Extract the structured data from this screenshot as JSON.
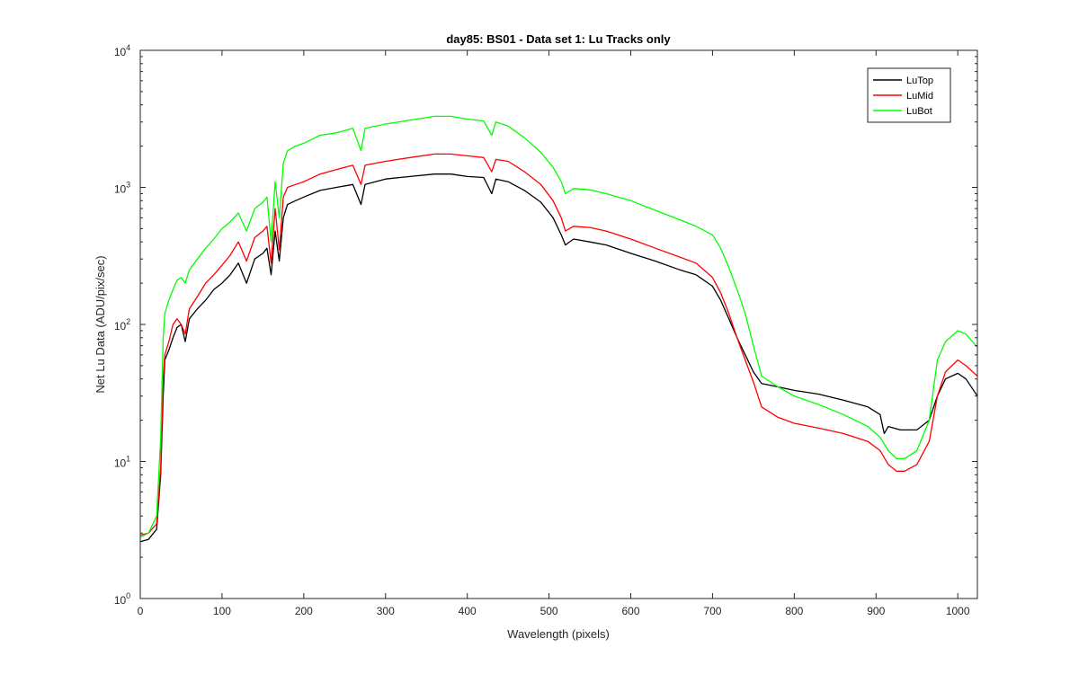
{
  "chart_data": {
    "type": "line",
    "title": "day85: BS01 - Data set 1: Lu Tracks only",
    "xlabel": "Wavelength (pixels)",
    "ylabel": "Net Lu Data (ADU/pix/sec)",
    "xlim": [
      0,
      1024
    ],
    "ylim": [
      1,
      10000
    ],
    "yscale": "log",
    "grid": false,
    "legend_position": "top-right",
    "x_ticks": [
      0,
      100,
      200,
      300,
      400,
      500,
      600,
      700,
      800,
      900,
      1000
    ],
    "y_ticks": [
      {
        "value": 1,
        "base": "10",
        "exp": "0"
      },
      {
        "value": 10,
        "base": "10",
        "exp": "1"
      },
      {
        "value": 100,
        "base": "10",
        "exp": "2"
      },
      {
        "value": 1000,
        "base": "10",
        "exp": "3"
      },
      {
        "value": 10000,
        "base": "10",
        "exp": "4"
      }
    ],
    "series": [
      {
        "name": "LuTop",
        "color": "#000000",
        "points": [
          [
            0,
            2.6
          ],
          [
            10,
            2.7
          ],
          [
            20,
            3.2
          ],
          [
            25,
            8
          ],
          [
            28,
            30
          ],
          [
            30,
            55
          ],
          [
            35,
            65
          ],
          [
            40,
            80
          ],
          [
            45,
            95
          ],
          [
            50,
            100
          ],
          [
            55,
            75
          ],
          [
            60,
            110
          ],
          [
            70,
            130
          ],
          [
            80,
            150
          ],
          [
            90,
            180
          ],
          [
            100,
            200
          ],
          [
            110,
            230
          ],
          [
            120,
            280
          ],
          [
            130,
            200
          ],
          [
            140,
            300
          ],
          [
            150,
            330
          ],
          [
            155,
            360
          ],
          [
            160,
            230
          ],
          [
            165,
            480
          ],
          [
            170,
            290
          ],
          [
            175,
            600
          ],
          [
            180,
            750
          ],
          [
            190,
            800
          ],
          [
            200,
            850
          ],
          [
            220,
            950
          ],
          [
            240,
            1000
          ],
          [
            260,
            1050
          ],
          [
            270,
            750
          ],
          [
            275,
            1050
          ],
          [
            300,
            1150
          ],
          [
            330,
            1200
          ],
          [
            360,
            1250
          ],
          [
            380,
            1250
          ],
          [
            400,
            1200
          ],
          [
            420,
            1180
          ],
          [
            430,
            900
          ],
          [
            435,
            1150
          ],
          [
            450,
            1100
          ],
          [
            470,
            950
          ],
          [
            490,
            780
          ],
          [
            505,
            600
          ],
          [
            515,
            450
          ],
          [
            520,
            380
          ],
          [
            530,
            420
          ],
          [
            550,
            400
          ],
          [
            570,
            380
          ],
          [
            600,
            330
          ],
          [
            630,
            290
          ],
          [
            660,
            250
          ],
          [
            680,
            230
          ],
          [
            700,
            190
          ],
          [
            710,
            150
          ],
          [
            720,
            110
          ],
          [
            730,
            80
          ],
          [
            740,
            60
          ],
          [
            750,
            45
          ],
          [
            760,
            37
          ],
          [
            780,
            35
          ],
          [
            800,
            33
          ],
          [
            830,
            31
          ],
          [
            860,
            28
          ],
          [
            890,
            25
          ],
          [
            905,
            22
          ],
          [
            910,
            16
          ],
          [
            915,
            18
          ],
          [
            930,
            17
          ],
          [
            950,
            17
          ],
          [
            965,
            20
          ],
          [
            975,
            30
          ],
          [
            985,
            40
          ],
          [
            1000,
            44
          ],
          [
            1010,
            40
          ],
          [
            1024,
            30
          ]
        ]
      },
      {
        "name": "LuMid",
        "color": "#ff0000",
        "points": [
          [
            0,
            2.9
          ],
          [
            10,
            3.0
          ],
          [
            20,
            3.5
          ],
          [
            25,
            9
          ],
          [
            28,
            40
          ],
          [
            30,
            60
          ],
          [
            35,
            75
          ],
          [
            40,
            100
          ],
          [
            45,
            110
          ],
          [
            50,
            100
          ],
          [
            55,
            85
          ],
          [
            60,
            130
          ],
          [
            70,
            160
          ],
          [
            80,
            200
          ],
          [
            90,
            230
          ],
          [
            100,
            270
          ],
          [
            110,
            320
          ],
          [
            120,
            400
          ],
          [
            130,
            290
          ],
          [
            140,
            430
          ],
          [
            150,
            480
          ],
          [
            155,
            520
          ],
          [
            160,
            280
          ],
          [
            165,
            700
          ],
          [
            170,
            350
          ],
          [
            175,
            850
          ],
          [
            180,
            1000
          ],
          [
            190,
            1050
          ],
          [
            200,
            1100
          ],
          [
            220,
            1250
          ],
          [
            240,
            1350
          ],
          [
            260,
            1450
          ],
          [
            270,
            1050
          ],
          [
            275,
            1450
          ],
          [
            300,
            1550
          ],
          [
            330,
            1650
          ],
          [
            360,
            1750
          ],
          [
            380,
            1750
          ],
          [
            400,
            1700
          ],
          [
            420,
            1650
          ],
          [
            430,
            1300
          ],
          [
            435,
            1600
          ],
          [
            450,
            1550
          ],
          [
            470,
            1300
          ],
          [
            490,
            1050
          ],
          [
            505,
            800
          ],
          [
            515,
            600
          ],
          [
            520,
            480
          ],
          [
            530,
            520
          ],
          [
            550,
            510
          ],
          [
            570,
            480
          ],
          [
            600,
            420
          ],
          [
            630,
            360
          ],
          [
            660,
            310
          ],
          [
            680,
            280
          ],
          [
            700,
            220
          ],
          [
            710,
            170
          ],
          [
            720,
            120
          ],
          [
            730,
            80
          ],
          [
            740,
            55
          ],
          [
            750,
            38
          ],
          [
            760,
            25
          ],
          [
            780,
            21
          ],
          [
            800,
            19
          ],
          [
            830,
            17.5
          ],
          [
            860,
            16
          ],
          [
            890,
            14
          ],
          [
            905,
            12
          ],
          [
            915,
            9.5
          ],
          [
            925,
            8.5
          ],
          [
            935,
            8.5
          ],
          [
            950,
            9.5
          ],
          [
            965,
            14
          ],
          [
            975,
            30
          ],
          [
            985,
            45
          ],
          [
            1000,
            55
          ],
          [
            1010,
            50
          ],
          [
            1024,
            42
          ]
        ]
      },
      {
        "name": "LuBot",
        "color": "#00ff00",
        "points": [
          [
            0,
            2.8
          ],
          [
            10,
            3.0
          ],
          [
            20,
            4
          ],
          [
            25,
            15
          ],
          [
            28,
            80
          ],
          [
            30,
            120
          ],
          [
            35,
            150
          ],
          [
            40,
            180
          ],
          [
            45,
            210
          ],
          [
            50,
            220
          ],
          [
            55,
            200
          ],
          [
            60,
            250
          ],
          [
            70,
            300
          ],
          [
            80,
            360
          ],
          [
            90,
            420
          ],
          [
            100,
            500
          ],
          [
            110,
            560
          ],
          [
            120,
            650
          ],
          [
            130,
            480
          ],
          [
            140,
            700
          ],
          [
            150,
            780
          ],
          [
            155,
            850
          ],
          [
            160,
            400
          ],
          [
            165,
            1100
          ],
          [
            170,
            600
          ],
          [
            175,
            1500
          ],
          [
            180,
            1850
          ],
          [
            190,
            2000
          ],
          [
            200,
            2100
          ],
          [
            220,
            2400
          ],
          [
            240,
            2500
          ],
          [
            260,
            2700
          ],
          [
            270,
            1850
          ],
          [
            275,
            2700
          ],
          [
            300,
            2900
          ],
          [
            330,
            3100
          ],
          [
            360,
            3300
          ],
          [
            380,
            3300
          ],
          [
            400,
            3150
          ],
          [
            420,
            3050
          ],
          [
            430,
            2400
          ],
          [
            435,
            3000
          ],
          [
            450,
            2800
          ],
          [
            470,
            2300
          ],
          [
            490,
            1800
          ],
          [
            505,
            1400
          ],
          [
            515,
            1100
          ],
          [
            520,
            900
          ],
          [
            530,
            980
          ],
          [
            550,
            960
          ],
          [
            570,
            900
          ],
          [
            600,
            800
          ],
          [
            630,
            680
          ],
          [
            660,
            580
          ],
          [
            680,
            520
          ],
          [
            700,
            450
          ],
          [
            710,
            360
          ],
          [
            720,
            260
          ],
          [
            730,
            180
          ],
          [
            740,
            120
          ],
          [
            750,
            70
          ],
          [
            760,
            42
          ],
          [
            780,
            35
          ],
          [
            800,
            30
          ],
          [
            830,
            26
          ],
          [
            860,
            22
          ],
          [
            890,
            18
          ],
          [
            905,
            15
          ],
          [
            915,
            12
          ],
          [
            925,
            10.5
          ],
          [
            935,
            10.5
          ],
          [
            950,
            12
          ],
          [
            965,
            20
          ],
          [
            975,
            55
          ],
          [
            985,
            75
          ],
          [
            1000,
            90
          ],
          [
            1010,
            85
          ],
          [
            1024,
            68
          ]
        ]
      }
    ]
  }
}
